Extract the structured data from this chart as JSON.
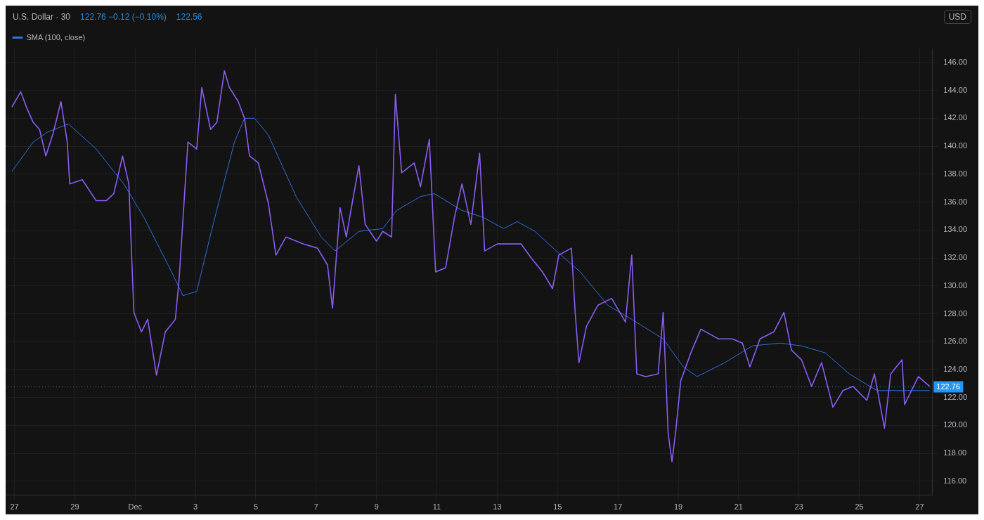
{
  "chart_data": {
    "type": "line",
    "title": "U.S. Dollar · 30",
    "annotations": [
      "122.76 −0.12 (−0.10%)",
      "122.56",
      "USD"
    ],
    "xlim": [
      "--11-26T17:00",
      "--12-27T10:00"
    ],
    "xticks": [
      {
        "value": "--11-27",
        "label": "27"
      },
      {
        "value": "--11-29",
        "label": "29"
      },
      {
        "value": "--12-01",
        "label": "Dec"
      },
      {
        "value": "--12-03",
        "label": "3"
      },
      {
        "value": "--12-05",
        "label": "5"
      },
      {
        "value": "--12-07",
        "label": "7"
      },
      {
        "value": "--12-09",
        "label": "9"
      },
      {
        "value": "--12-11",
        "label": "11"
      },
      {
        "value": "--12-13",
        "label": "13"
      },
      {
        "value": "--12-15",
        "label": "15"
      },
      {
        "value": "--12-17",
        "label": "17"
      },
      {
        "value": "--12-19",
        "label": "19"
      },
      {
        "value": "--12-21",
        "label": "21"
      },
      {
        "value": "--12-23",
        "label": "23"
      },
      {
        "value": "--12-25",
        "label": "25"
      },
      {
        "value": "--12-27",
        "label": "27"
      }
    ],
    "ylim": [
      115,
      147
    ],
    "yticks": [
      {
        "value": 116,
        "label": "116.00"
      },
      {
        "value": 118,
        "label": "118.00"
      },
      {
        "value": 120,
        "label": "120.00"
      },
      {
        "value": 122,
        "label": "122.00"
      },
      {
        "value": 124,
        "label": "124.00"
      },
      {
        "value": 126,
        "label": "126.00"
      },
      {
        "value": 128,
        "label": "128.00"
      },
      {
        "value": 130,
        "label": "130.00"
      },
      {
        "value": 132,
        "label": "132.00"
      },
      {
        "value": 134,
        "label": "134.00"
      },
      {
        "value": 136,
        "label": "136.00"
      },
      {
        "value": 138,
        "label": "138.00"
      },
      {
        "value": 140,
        "label": "140.00"
      },
      {
        "value": 142,
        "label": "142.00"
      },
      {
        "value": 144,
        "label": "144.00"
      },
      {
        "value": 146,
        "label": "146.00"
      }
    ],
    "grid": true,
    "legend": "top left",
    "marker": "none",
    "line_style": "solid",
    "ref_lines": [
      {
        "axis": "y",
        "value": 122.76,
        "label": "122.76",
        "color": "#2a7ab8",
        "line_style": "dotted"
      }
    ],
    "series": [
      {
        "color": "#8a5cf6",
        "x": [
          "--11-26T22:00",
          "--11-27T05:00",
          "--11-27T10:00",
          "--11-27T15:00",
          "--11-27T20:00",
          "--11-28T01:00",
          "--11-28T07:00",
          "--11-28T13:00",
          "--11-28T18:00",
          "--11-28T20:00",
          "--11-29T06:00",
          "--11-29T17:00",
          "--11-30T01:00",
          "--11-30T07:00",
          "--11-30T14:00",
          "--11-30T19:00",
          "--11-30T23:00",
          "--12-01T05:00",
          "--12-01T10:00",
          "--12-01T17:00",
          "--12-02T00:00",
          "--12-02T08:00",
          "--12-02T11:00",
          "--12-02T18:00",
          "--12-03T01:00",
          "--12-03T05:00",
          "--12-03T12:00",
          "--12-03T17:00",
          "--12-03T23:00",
          "--12-04T03:00",
          "--12-04T10:00",
          "--12-04T15:00",
          "--12-04T19:00",
          "--12-05T02:00",
          "--12-05T10:00",
          "--12-05T16:00",
          "--12-06T00:00",
          "--12-06T14:00",
          "--12-07T01:00",
          "--12-07T09:00",
          "--12-07T13:00",
          "--12-07T19:00",
          "--12-08T00:00",
          "--12-08T04:00",
          "--12-08T10:00",
          "--12-08T15:00",
          "--12-09T00:00",
          "--12-09T05:00",
          "--12-09T12:00",
          "--12-09T15:00",
          "--12-09T20:00",
          "--12-10T06:00",
          "--12-10T11:00",
          "--12-10T18:00",
          "--12-10T23:00",
          "--12-11T07:00",
          "--12-11T14:00",
          "--12-11T20:00",
          "--12-12T03:00",
          "--12-12T10:00",
          "--12-12T14:00",
          "--12-13T00:00",
          "--12-13T11:00",
          "--12-13T19:00",
          "--12-14T03:00",
          "--12-14T12:00",
          "--12-14T20:00",
          "--12-15T01:00",
          "--12-15T11:00",
          "--12-15T14:00",
          "--12-15T17:00",
          "--12-15T23:00",
          "--12-16T08:00",
          "--12-16T19:00",
          "--12-17T06:00",
          "--12-17T11:00",
          "--12-17T15:00",
          "--12-17T22:00",
          "--12-18T08:00",
          "--12-18T12:00",
          "--12-18T16:00",
          "--12-18T19:00",
          "--12-18T22:00",
          "--12-19T02:00",
          "--12-19T10:00",
          "--12-19T18:00",
          "--12-20T08:00",
          "--12-20T19:00",
          "--12-21T03:00",
          "--12-21T09:00",
          "--12-21T17:00",
          "--12-22T04:00",
          "--12-22T12:00",
          "--12-22T18:00",
          "--12-23T02:00",
          "--12-23T10:00",
          "--12-23T18:00",
          "--12-24T03:00",
          "--12-24T11:00",
          "--12-24T19:00",
          "--12-25T06:00",
          "--12-25T12:00",
          "--12-25T20:00",
          "--12-26T01:00",
          "--12-26T10:00",
          "--12-26T12:00",
          "--12-26T23:00",
          "--12-27T08:00"
        ],
        "values": [
          142.8,
          143.9,
          142.7,
          141.7,
          141.2,
          139.3,
          141.0,
          143.2,
          140.3,
          137.3,
          137.6,
          136.1,
          136.1,
          136.6,
          139.3,
          137.3,
          128.1,
          126.7,
          127.6,
          123.6,
          126.7,
          127.6,
          130.5,
          140.3,
          139.8,
          144.2,
          141.2,
          141.7,
          145.4,
          144.2,
          143.2,
          142.0,
          139.3,
          138.8,
          135.9,
          132.2,
          133.5,
          133.0,
          132.7,
          131.5,
          128.4,
          135.6,
          133.5,
          135.6,
          138.6,
          134.4,
          133.2,
          133.9,
          133.5,
          143.7,
          138.1,
          138.8,
          137.1,
          140.5,
          131.0,
          131.3,
          134.9,
          137.3,
          134.4,
          139.5,
          132.5,
          133.0,
          133.0,
          133.0,
          132.0,
          131.0,
          129.8,
          132.2,
          132.7,
          128.1,
          124.5,
          127.1,
          128.6,
          129.1,
          127.4,
          132.2,
          123.7,
          123.5,
          123.7,
          128.1,
          119.4,
          117.4,
          119.6,
          123.2,
          125.2,
          126.9,
          126.2,
          126.2,
          125.9,
          124.2,
          126.2,
          126.7,
          128.1,
          125.4,
          124.7,
          122.8,
          124.5,
          121.3,
          122.5,
          122.8,
          121.8,
          123.7,
          119.8,
          123.7,
          124.7,
          121.5,
          123.5,
          122.8
        ]
      },
      {
        "name": "SMA (100, close)",
        "color": "#2f6fe0",
        "x": [
          "--11-26T22:00",
          "--11-27T15:00",
          "--11-28T02:00",
          "--11-28T19:00",
          "--11-29T17:00",
          "--11-30T15:00",
          "--12-01T07:00",
          "--12-02T05:00",
          "--12-02T14:00",
          "--12-03T01:00",
          "--12-03T14:00",
          "--12-04T07:00",
          "--12-04T15:00",
          "--12-04T23:00",
          "--12-05T10:00",
          "--12-06T08:00",
          "--12-07T04:00",
          "--12-07T15:00",
          "--12-08T10:00",
          "--12-09T05:00",
          "--12-09T16:00",
          "--12-10T11:00",
          "--12-10T22:00",
          "--12-11T20:00",
          "--12-12T13:00",
          "--12-13T05:00",
          "--12-13T16:00",
          "--12-14T06:00",
          "--12-14T23:00",
          "--12-15T18:00",
          "--12-16T16:00",
          "--12-17T11:00",
          "--12-18T12:00",
          "--12-19T04:00",
          "--12-19T15:00",
          "--12-20T13:00",
          "--12-21T11:00",
          "--12-22T09:00",
          "--12-23T02:00",
          "--12-23T21:00",
          "--12-24T16:00",
          "--12-25T14:00",
          "--12-26T12:00",
          "--12-27T08:00"
        ],
        "values": [
          138.2,
          140.3,
          141.0,
          141.6,
          139.8,
          137.3,
          134.9,
          131.0,
          129.3,
          129.6,
          134.4,
          140.3,
          142.0,
          142.0,
          140.8,
          136.4,
          133.5,
          132.5,
          133.9,
          134.1,
          135.4,
          136.4,
          136.6,
          135.4,
          134.9,
          134.1,
          134.6,
          133.9,
          132.5,
          131.0,
          128.6,
          127.6,
          126.2,
          124.2,
          123.5,
          124.5,
          125.7,
          125.9,
          125.7,
          125.2,
          123.7,
          122.5,
          122.5,
          122.5
        ]
      }
    ]
  }
}
